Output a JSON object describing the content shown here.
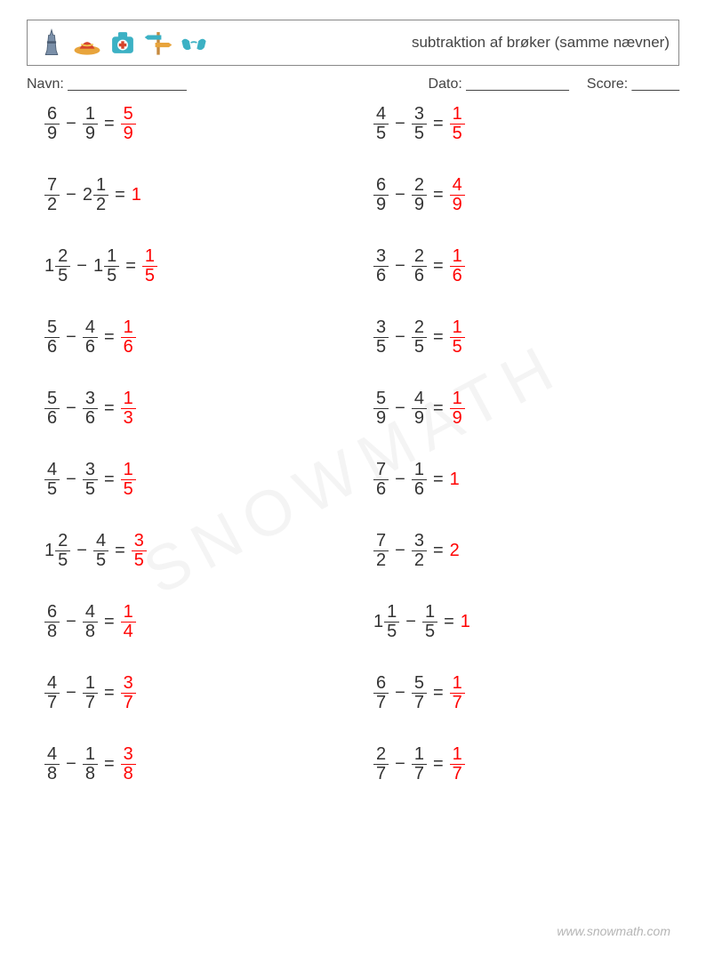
{
  "header": {
    "title": "subtraktion af brøker (samme nævner)"
  },
  "meta": {
    "name_label": "Navn: _______________",
    "date_label": "Dato: _____________",
    "score_label": "Score: ______"
  },
  "watermark": "SNOWMATH",
  "footer": "www.snowmath.com",
  "colors": {
    "text": "#333333",
    "answer": "#ff0000",
    "border": "#888888",
    "watermark": "rgba(120,120,120,0.08)",
    "footer": "#b5b5b5"
  },
  "op_minus": "−",
  "op_equals": "=",
  "problems_left": [
    {
      "a": {
        "n": "6",
        "d": "9"
      },
      "b": {
        "n": "1",
        "d": "9"
      },
      "ans": {
        "n": "5",
        "d": "9"
      }
    },
    {
      "a": {
        "n": "7",
        "d": "2"
      },
      "b": {
        "w": "2",
        "n": "1",
        "d": "2"
      },
      "ans": {
        "w": "1"
      }
    },
    {
      "a": {
        "w": "1",
        "n": "2",
        "d": "5"
      },
      "b": {
        "w": "1",
        "n": "1",
        "d": "5"
      },
      "ans": {
        "n": "1",
        "d": "5"
      }
    },
    {
      "a": {
        "n": "5",
        "d": "6"
      },
      "b": {
        "n": "4",
        "d": "6"
      },
      "ans": {
        "n": "1",
        "d": "6"
      }
    },
    {
      "a": {
        "n": "5",
        "d": "6"
      },
      "b": {
        "n": "3",
        "d": "6"
      },
      "ans": {
        "n": "1",
        "d": "3"
      }
    },
    {
      "a": {
        "n": "4",
        "d": "5"
      },
      "b": {
        "n": "3",
        "d": "5"
      },
      "ans": {
        "n": "1",
        "d": "5"
      }
    },
    {
      "a": {
        "w": "1",
        "n": "2",
        "d": "5"
      },
      "b": {
        "n": "4",
        "d": "5"
      },
      "ans": {
        "n": "3",
        "d": "5"
      }
    },
    {
      "a": {
        "n": "6",
        "d": "8"
      },
      "b": {
        "n": "4",
        "d": "8"
      },
      "ans": {
        "n": "1",
        "d": "4"
      }
    },
    {
      "a": {
        "n": "4",
        "d": "7"
      },
      "b": {
        "n": "1",
        "d": "7"
      },
      "ans": {
        "n": "3",
        "d": "7"
      }
    },
    {
      "a": {
        "n": "4",
        "d": "8"
      },
      "b": {
        "n": "1",
        "d": "8"
      },
      "ans": {
        "n": "3",
        "d": "8"
      }
    }
  ],
  "problems_right": [
    {
      "a": {
        "n": "4",
        "d": "5"
      },
      "b": {
        "n": "3",
        "d": "5"
      },
      "ans": {
        "n": "1",
        "d": "5"
      }
    },
    {
      "a": {
        "n": "6",
        "d": "9"
      },
      "b": {
        "n": "2",
        "d": "9"
      },
      "ans": {
        "n": "4",
        "d": "9"
      }
    },
    {
      "a": {
        "n": "3",
        "d": "6"
      },
      "b": {
        "n": "2",
        "d": "6"
      },
      "ans": {
        "n": "1",
        "d": "6"
      }
    },
    {
      "a": {
        "n": "3",
        "d": "5"
      },
      "b": {
        "n": "2",
        "d": "5"
      },
      "ans": {
        "n": "1",
        "d": "5"
      }
    },
    {
      "a": {
        "n": "5",
        "d": "9"
      },
      "b": {
        "n": "4",
        "d": "9"
      },
      "ans": {
        "n": "1",
        "d": "9"
      }
    },
    {
      "a": {
        "n": "7",
        "d": "6"
      },
      "b": {
        "n": "1",
        "d": "6"
      },
      "ans": {
        "w": "1"
      }
    },
    {
      "a": {
        "n": "7",
        "d": "2"
      },
      "b": {
        "n": "3",
        "d": "2"
      },
      "ans": {
        "w": "2"
      }
    },
    {
      "a": {
        "w": "1",
        "n": "1",
        "d": "5"
      },
      "b": {
        "n": "1",
        "d": "5"
      },
      "ans": {
        "w": "1"
      }
    },
    {
      "a": {
        "n": "6",
        "d": "7"
      },
      "b": {
        "n": "5",
        "d": "7"
      },
      "ans": {
        "n": "1",
        "d": "7"
      }
    },
    {
      "a": {
        "n": "2",
        "d": "7"
      },
      "b": {
        "n": "1",
        "d": "7"
      },
      "ans": {
        "n": "1",
        "d": "7"
      }
    }
  ]
}
